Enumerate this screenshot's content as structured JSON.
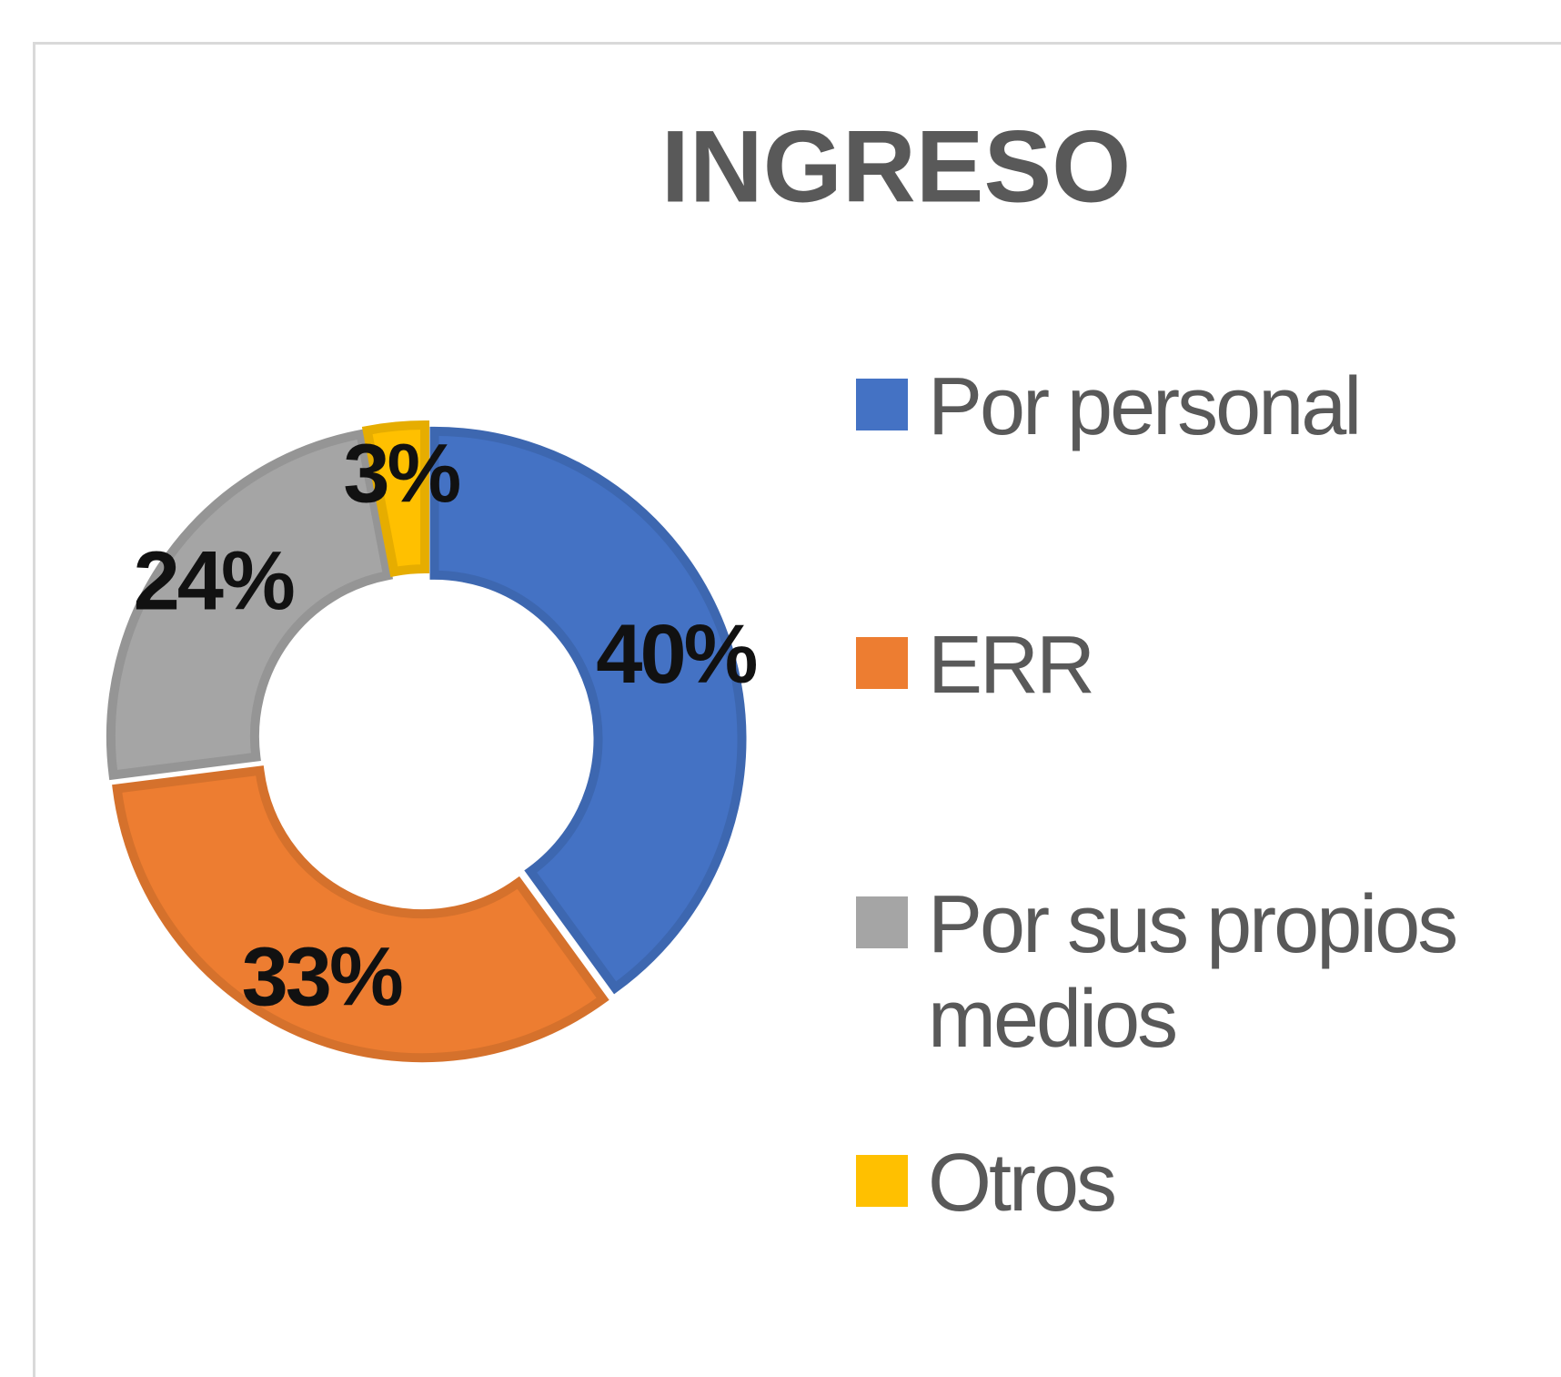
{
  "chart_data": {
    "type": "donut",
    "title": "INGRESO",
    "categories": [
      "Por personal",
      "ERR",
      "Por sus propios medios",
      "Otros"
    ],
    "values": [
      40,
      33,
      24,
      3
    ],
    "value_labels": [
      "40%",
      "33%",
      "24%",
      "3%"
    ],
    "colors": [
      "#4472c4",
      "#ed7d31",
      "#a5a5a5",
      "#ffc000"
    ],
    "legend": "right"
  }
}
